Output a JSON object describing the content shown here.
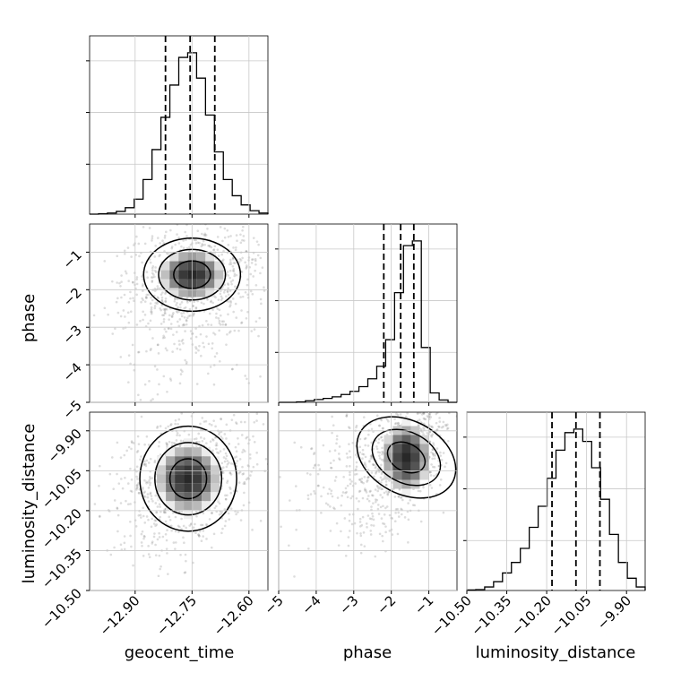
{
  "chart_data": {
    "type": "corner",
    "parameters": [
      "geocent_time",
      "phase",
      "luminosity_distance"
    ],
    "axis_labels": {
      "geocent_time": "geocent_time",
      "phase": "phase",
      "luminosity_distance": "luminosity_distance"
    },
    "ranges": {
      "geocent_time": [
        -13.02,
        -12.55
      ],
      "phase": [
        -5.0,
        -0.25
      ],
      "luminosity_distance": [
        -10.5,
        -9.83
      ]
    },
    "ticks": {
      "geocent_time": {
        "values": [
          -12.9,
          -12.75,
          -12.6
        ],
        "labels": [
          "−12.90",
          "−12.75",
          "−12.60"
        ]
      },
      "phase": {
        "values": [
          -5,
          -4,
          -3,
          -2,
          -1
        ],
        "labels": [
          "−5",
          "−4",
          "−3",
          "−2",
          "−1"
        ]
      },
      "luminosity_distance": {
        "values": [
          -10.5,
          -10.35,
          -10.2,
          -10.05,
          -9.9
        ],
        "labels": [
          "−10.50",
          "−10.35",
          "−10.20",
          "−10.05",
          "−9.90"
        ]
      }
    },
    "grid": true,
    "quantiles": {
      "geocent_time": [
        -12.82,
        -12.755,
        -12.69
      ],
      "phase": [
        -2.2,
        -1.75,
        -1.4
      ],
      "luminosity_distance": [
        -10.18,
        -10.09,
        -10.0
      ]
    },
    "histograms": {
      "geocent_time": {
        "edges": [
          -13.02,
          -12.9965,
          -12.973,
          -12.9495,
          -12.926,
          -12.9025,
          -12.879,
          -12.8555,
          -12.832,
          -12.8085,
          -12.785,
          -12.7615,
          -12.738,
          -12.7145,
          -12.691,
          -12.6675,
          -12.644,
          -12.6205,
          -12.597,
          -12.5735,
          -12.55
        ],
        "counts": [
          0,
          2,
          5,
          12,
          28,
          65,
          150,
          280,
          420,
          560,
          680,
          700,
          590,
          430,
          270,
          150,
          80,
          40,
          15,
          5
        ]
      },
      "phase": {
        "edges": [
          -5.0,
          -4.7625,
          -4.525,
          -4.2875,
          -4.05,
          -3.8125,
          -3.575,
          -3.3375,
          -3.1,
          -2.8625,
          -2.625,
          -2.3875,
          -2.15,
          -1.9125,
          -1.675,
          -1.4375,
          -1.2,
          -0.9625,
          -0.725,
          -0.4875,
          -0.25
        ],
        "counts": [
          0,
          0,
          3,
          10,
          18,
          25,
          35,
          50,
          70,
          100,
          150,
          230,
          400,
          700,
          1000,
          1030,
          350,
          60,
          15,
          0
        ]
      },
      "luminosity_distance": {
        "edges": [
          -10.5,
          -10.4665,
          -10.433,
          -10.3995,
          -10.366,
          -10.3325,
          -10.299,
          -10.2655,
          -10.232,
          -10.1985,
          -10.165,
          -10.1315,
          -10.098,
          -10.0645,
          -10.031,
          -9.9975,
          -9.964,
          -9.9305,
          -9.897,
          -9.8635,
          -9.83
        ],
        "counts": [
          3,
          5,
          20,
          50,
          100,
          160,
          240,
          360,
          480,
          640,
          800,
          900,
          920,
          850,
          700,
          520,
          320,
          160,
          70,
          20
        ]
      }
    },
    "joint_peaks": {
      "phase_vs_geocent_time": [
        -12.75,
        -1.6
      ],
      "luminosity_distance_vs_geocent_time": [
        -12.76,
        -10.08
      ],
      "luminosity_distance_vs_phase": [
        -1.6,
        -10.0
      ]
    }
  }
}
